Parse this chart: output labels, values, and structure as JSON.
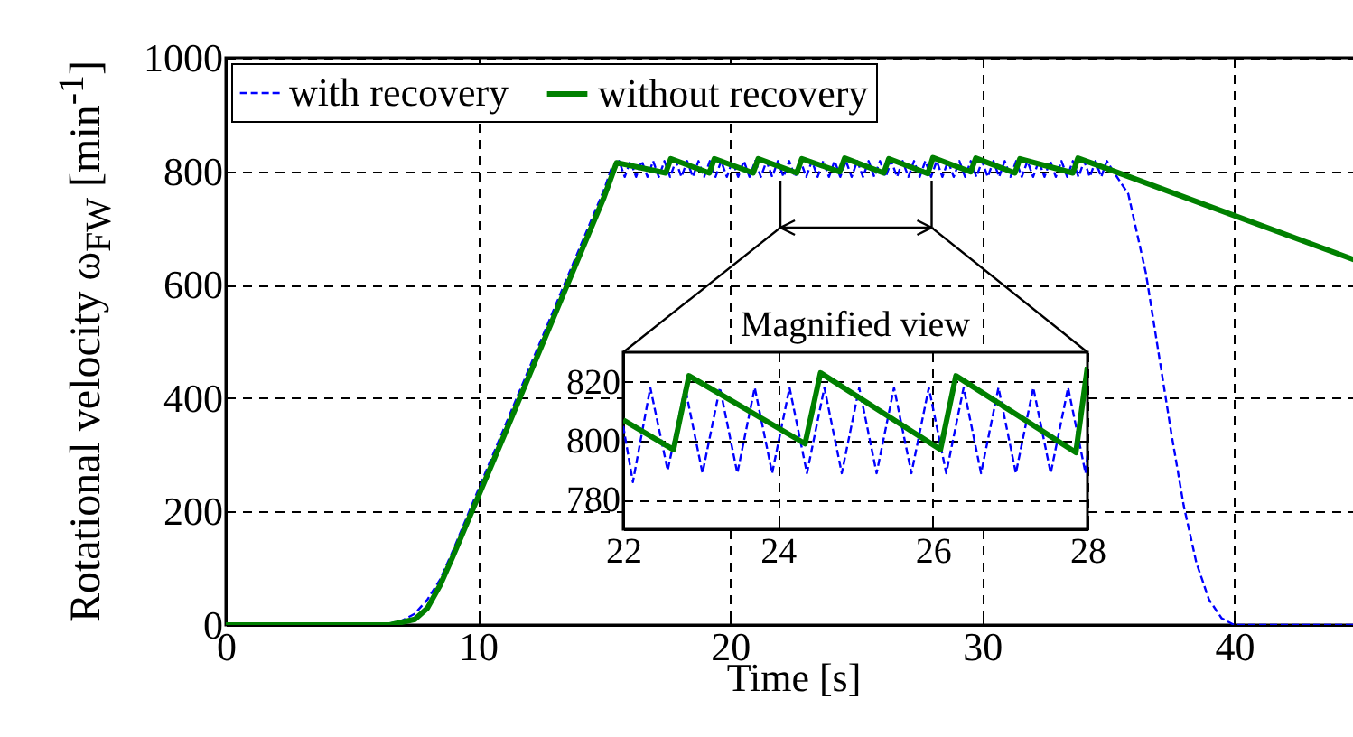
{
  "chart_data": [
    {
      "type": "line",
      "xlabel": "Time [s]",
      "ylabel": "Rotational velocity ω$_{FW}$ [min$^{-1}$]",
      "xlim": [
        0,
        45
      ],
      "ylim": [
        0,
        1000
      ],
      "xticks": [
        0,
        10,
        20,
        30,
        40
      ],
      "yticks": [
        0,
        200,
        400,
        600,
        800,
        1000
      ],
      "grid": true,
      "legend": "top left",
      "series": [
        {
          "name": "with recovery",
          "color": "#0000ff",
          "line_style": "dashed",
          "x": [
            0,
            6.3,
            7,
            7.5,
            8,
            8.5,
            9,
            10,
            11,
            12,
            13,
            14,
            15,
            15.3,
            15.6,
            15.825,
            16.05,
            16.275,
            16.5,
            16.725,
            16.95,
            17.175,
            17.4,
            17.625,
            17.85,
            18.075,
            18.3,
            18.525,
            18.75,
            18.975,
            19.2,
            19.425,
            19.65,
            19.875,
            20.1,
            20.325,
            20.55,
            20.775,
            21,
            21.225,
            21.45,
            21.675,
            21.9,
            22.125,
            22.35,
            22.575,
            22.8,
            23.025,
            23.25,
            23.475,
            23.7,
            23.925,
            24.15,
            24.375,
            24.6,
            24.825,
            25.05,
            25.275,
            25.5,
            25.725,
            25.95,
            26.175,
            26.4,
            26.625,
            26.85,
            27.075,
            27.3,
            27.525,
            27.75,
            27.975,
            28.2,
            28.425,
            28.65,
            28.875,
            29.1,
            29.325,
            29.55,
            29.775,
            30,
            30.225,
            30.45,
            30.675,
            30.9,
            31.125,
            31.35,
            31.575,
            31.8,
            32.025,
            32.25,
            32.475,
            32.7,
            32.925,
            33.15,
            33.375,
            33.6,
            33.825,
            34.05,
            34.275,
            34.5,
            34.725,
            34.95,
            35.2,
            35.8,
            36.5,
            37,
            37.5,
            38,
            38.5,
            39,
            39.5,
            40,
            45
          ],
          "values": [
            0,
            0,
            8,
            20,
            45,
            80,
            130,
            237,
            343,
            449,
            555,
            661,
            767,
            805,
            818,
            790,
            818,
            790,
            818,
            790,
            818,
            790,
            818,
            790,
            818,
            790,
            818,
            790,
            818,
            790,
            818,
            790,
            818,
            790,
            818,
            790,
            818,
            790,
            818,
            790,
            818,
            790,
            818,
            790,
            818,
            790,
            818,
            790,
            818,
            790,
            818,
            790,
            818,
            790,
            818,
            790,
            818,
            790,
            818,
            790,
            818,
            790,
            818,
            790,
            818,
            790,
            818,
            790,
            818,
            790,
            818,
            790,
            818,
            790,
            818,
            790,
            818,
            790,
            818,
            790,
            818,
            790,
            818,
            790,
            818,
            790,
            818,
            790,
            818,
            790,
            818,
            790,
            818,
            790,
            818,
            790,
            818,
            790,
            818,
            790,
            818,
            800,
            760,
            620,
            480,
            340,
            210,
            110,
            45,
            12,
            0,
            0
          ]
        },
        {
          "name": "without recovery",
          "color": "#008000",
          "line_style": "solid",
          "x": [
            0,
            6.5,
            7.5,
            8,
            8.5,
            9,
            10,
            11,
            12,
            13,
            14,
            15,
            15.5,
            17.45,
            17.65,
            19.18,
            19.38,
            20.92,
            21.12,
            22.65,
            22.85,
            24.35,
            24.55,
            26.1,
            26.3,
            27.85,
            28.05,
            29.55,
            29.75,
            31.3,
            31.5,
            33.6,
            33.8,
            35,
            40,
            45
          ],
          "values": [
            0,
            0,
            10,
            30,
            70,
            120,
            225,
            330,
            436,
            542,
            648,
            754,
            815,
            797,
            822,
            797,
            822,
            797,
            822,
            797,
            822,
            799,
            823,
            797,
            822,
            796,
            824,
            799,
            823,
            797,
            822,
            797,
            823,
            804,
            722,
            640
          ]
        }
      ]
    },
    {
      "type": "line",
      "title": "Magnified view",
      "xlim": [
        22,
        28
      ],
      "ylim": [
        770,
        830
      ],
      "xticks": [
        22,
        24,
        26,
        28
      ],
      "yticks": [
        780,
        800,
        820
      ],
      "grid": true,
      "series": [
        {
          "color": "#0000ff",
          "line_style": "dashed",
          "x": [
            22,
            22.125,
            22.35,
            22.575,
            22.8,
            23.025,
            23.25,
            23.475,
            23.7,
            23.925,
            24.15,
            24.375,
            24.6,
            24.825,
            25.05,
            25.275,
            25.5,
            25.725,
            25.95,
            26.175,
            26.4,
            26.625,
            26.85,
            27.075,
            27.3,
            27.525,
            27.75,
            27.975,
            28
          ],
          "values": [
            805,
            786,
            818,
            790,
            818,
            789,
            818,
            789,
            818,
            789,
            818,
            789,
            818,
            789,
            818,
            789,
            818,
            789,
            818,
            789,
            818,
            789,
            818,
            789,
            818,
            789,
            818,
            789,
            795
          ]
        },
        {
          "color": "#008000",
          "line_style": "solid",
          "x": [
            22,
            22.65,
            22.85,
            24.35,
            24.55,
            26.1,
            26.3,
            27.85,
            28
          ],
          "values": [
            807,
            797,
            822,
            799,
            823,
            797,
            822,
            796,
            825
          ]
        }
      ]
    }
  ]
}
